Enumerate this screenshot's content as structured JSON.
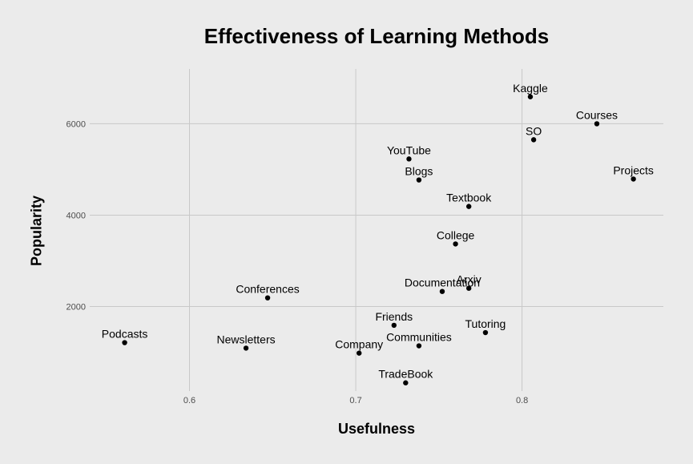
{
  "chart_data": {
    "type": "scatter",
    "title": "Effectiveness of Learning Methods",
    "xlabel": "Usefulness",
    "ylabel": "Popularity",
    "xlim": [
      0.54,
      0.885
    ],
    "ylim": [
      150,
      7200
    ],
    "x_ticks": [
      0.6,
      0.7,
      0.8
    ],
    "x_tick_labels": [
      "0.6",
      "0.7",
      "0.8"
    ],
    "y_ticks": [
      2000,
      4000,
      6000
    ],
    "y_tick_labels": [
      "2000",
      "4000",
      "6000"
    ],
    "grid": true,
    "legend": "none",
    "points": [
      {
        "label": "Kaggle",
        "x": 0.805,
        "y": 6590
      },
      {
        "label": "Courses",
        "x": 0.845,
        "y": 6000
      },
      {
        "label": "SO",
        "x": 0.807,
        "y": 5650
      },
      {
        "label": "YouTube",
        "x": 0.732,
        "y": 5230
      },
      {
        "label": "Projects",
        "x": 0.867,
        "y": 4790
      },
      {
        "label": "Blogs",
        "x": 0.738,
        "y": 4770
      },
      {
        "label": "Textbook",
        "x": 0.768,
        "y": 4190
      },
      {
        "label": "College",
        "x": 0.76,
        "y": 3370
      },
      {
        "label": "Documentation",
        "x": 0.752,
        "y": 2330
      },
      {
        "label": "Arxiv",
        "x": 0.768,
        "y": 2400
      },
      {
        "label": "Conferences",
        "x": 0.647,
        "y": 2190
      },
      {
        "label": "Friends",
        "x": 0.723,
        "y": 1590
      },
      {
        "label": "Tutoring",
        "x": 0.778,
        "y": 1430
      },
      {
        "label": "Podcasts",
        "x": 0.561,
        "y": 1210
      },
      {
        "label": "Newsletters",
        "x": 0.634,
        "y": 1090
      },
      {
        "label": "Communities",
        "x": 0.738,
        "y": 1140
      },
      {
        "label": "Company",
        "x": 0.702,
        "y": 980
      },
      {
        "label": "TradeBook",
        "x": 0.73,
        "y": 330
      }
    ]
  }
}
